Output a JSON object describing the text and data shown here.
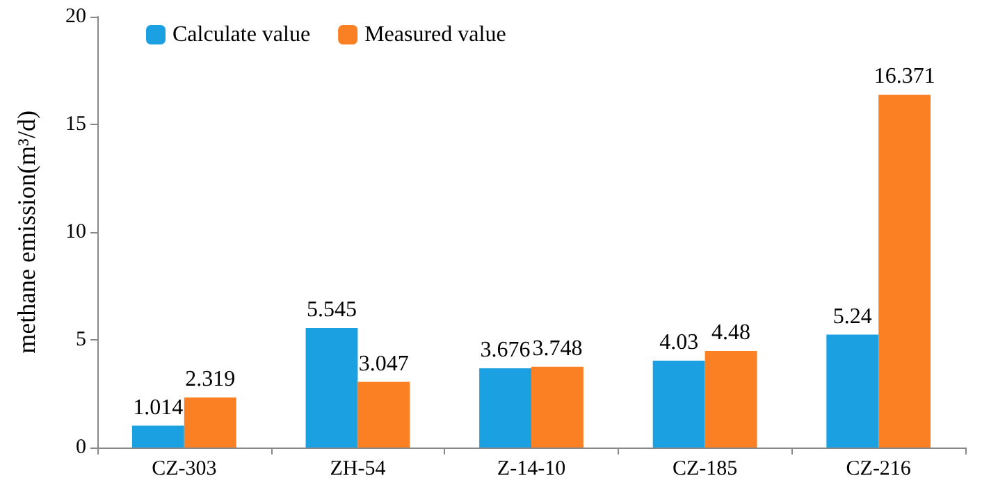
{
  "chart_data": {
    "type": "bar",
    "ylabel": "methane emission(m³/d)",
    "categories": [
      "CZ-303",
      "ZH-54",
      "Z-14-10",
      "CZ-185",
      "CZ-216"
    ],
    "series": [
      {
        "name": "Calculate value",
        "color": "#1ba1e2",
        "values": [
          1.014,
          5.545,
          3.676,
          4.03,
          5.24
        ]
      },
      {
        "name": "Measured value",
        "color": "#fb7f23",
        "values": [
          2.319,
          3.047,
          3.748,
          4.48,
          16.371
        ]
      }
    ],
    "ylim": [
      0,
      20
    ],
    "yticks": [
      0,
      5,
      10,
      15,
      20
    ],
    "grid": false,
    "legend": "top left",
    "data_labels": true
  }
}
